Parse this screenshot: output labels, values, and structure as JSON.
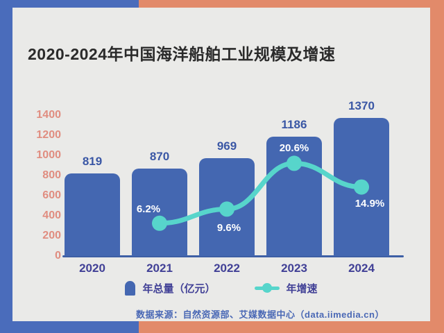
{
  "page": {
    "title": "2020-2024年中国海洋船舶工业规模及增速",
    "source_note": "数据来源：自然资源部、艾媒数据中心（data.iimedia.cn）"
  },
  "colors": {
    "frame_blue": "#4a6cbb",
    "frame_orange": "#e28a6a",
    "card_background": "#eaeae8",
    "bar_fill": "#4467b1",
    "axis_line": "#3d5fa5",
    "ytick_text": "#e08d80",
    "bar_value_text": "#3a57a5",
    "xtick_text": "#414096",
    "growth_line": "#57d5cb",
    "growth_label_text": "#ffffff",
    "source_text": "#4a68b5",
    "title_text": "#2a2a2a"
  },
  "legend": {
    "bar_label": "年总量（亿元）",
    "line_label": "年增速"
  },
  "chart_data": {
    "type": "bar",
    "combo": "bar+line",
    "title": "2020-2024年中国海洋船舶工业规模及增速",
    "categories": [
      "2020",
      "2021",
      "2022",
      "2023",
      "2024"
    ],
    "series": [
      {
        "name": "年总量（亿元）",
        "type": "bar",
        "values": [
          819,
          870,
          969,
          1186,
          1370
        ],
        "data_labels": [
          "819",
          "870",
          "969",
          "1186",
          "1370"
        ]
      },
      {
        "name": "年增速",
        "type": "line",
        "unit": "%",
        "values": [
          null,
          6.2,
          9.6,
          20.6,
          14.9
        ],
        "data_labels": [
          "",
          "6.2%",
          "9.6%",
          "20.6%",
          "14.9%"
        ]
      }
    ],
    "xlabel": "",
    "ylabel": "",
    "ylim": [
      0,
      1400
    ],
    "yticks": [
      0,
      200,
      400,
      600,
      800,
      1000,
      1200,
      1400
    ],
    "grid": false,
    "legend_position": "bottom"
  }
}
